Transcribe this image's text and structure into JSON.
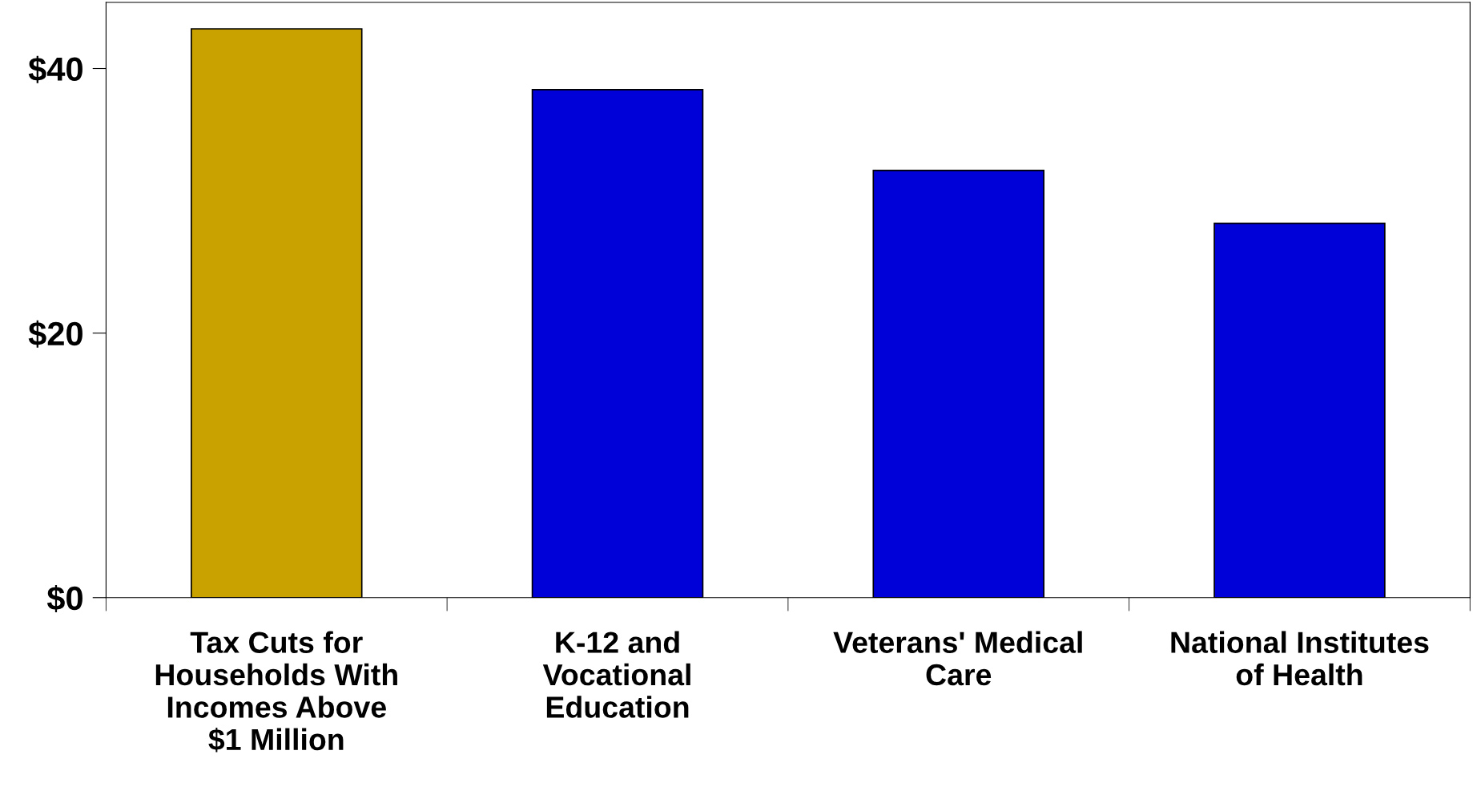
{
  "chart_data": {
    "type": "bar",
    "categories": [
      "Tax Cuts for\nHouseholds With\nIncomes Above\n$1 Million",
      "K-12 and\nVocational\nEducation",
      "Veterans' Medical\nCare",
      "National Institutes\nof Health"
    ],
    "values": [
      43,
      38.4,
      32.3,
      28.3
    ],
    "colors": [
      "#c9a200",
      "#0000d8",
      "#0000d8",
      "#0000d8"
    ],
    "ylim": [
      0,
      45
    ],
    "yticks": [
      {
        "value": 0,
        "label": "$0"
      },
      {
        "value": 20,
        "label": "$20"
      },
      {
        "value": 40,
        "label": "$40"
      }
    ],
    "grid": false
  }
}
